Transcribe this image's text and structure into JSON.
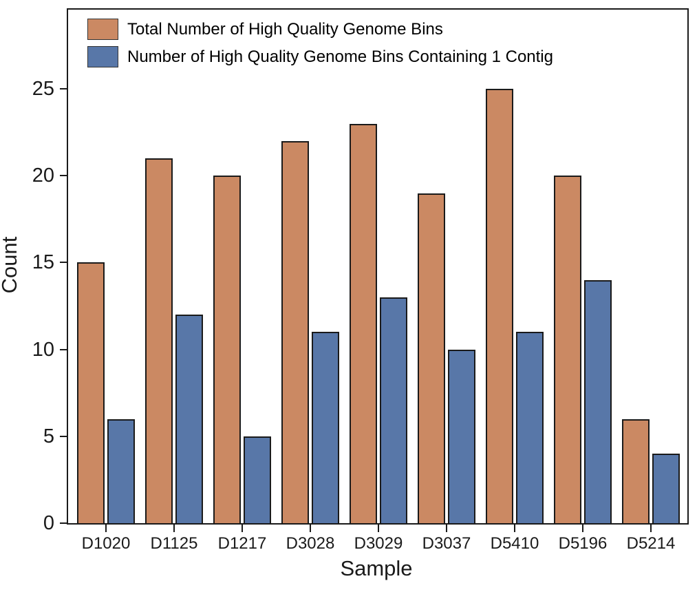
{
  "chart_data": {
    "type": "bar",
    "title": "",
    "xlabel": "Sample",
    "ylabel": "Count",
    "categories": [
      "D1020",
      "D1125",
      "D1217",
      "D3028",
      "D3029",
      "D3037",
      "D5410",
      "D5196",
      "D5214"
    ],
    "series": [
      {
        "name": "Total Number of High Quality Genome Bins",
        "color": "#CB8963",
        "values": [
          15,
          21,
          20,
          22,
          23,
          19,
          25,
          20,
          6
        ]
      },
      {
        "name": "Number of High Quality Genome Bins Containing 1 Contig",
        "color": "#5877A8",
        "values": [
          6,
          12,
          5,
          11,
          13,
          10,
          11,
          14,
          4
        ]
      }
    ],
    "yticks": [
      0,
      5,
      10,
      15,
      20,
      25
    ],
    "ylim": [
      0,
      29.56
    ],
    "grid": false,
    "legend_position": "upper-left",
    "bar_edge_color": "#1a1a1a",
    "frame": true
  }
}
